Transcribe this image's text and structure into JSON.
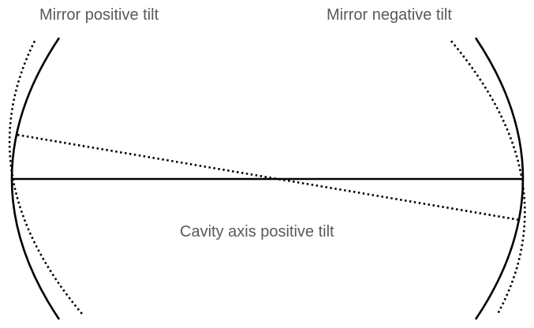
{
  "labels": {
    "mirror_positive_tilt": "Mirror positive tilt",
    "mirror_negative_tilt": "Mirror negative tilt",
    "cavity_axis_positive_tilt": "Cavity axis positive tilt"
  },
  "colors": {
    "stroke": "#000000",
    "label": "#595959",
    "background": "#ffffff"
  }
}
